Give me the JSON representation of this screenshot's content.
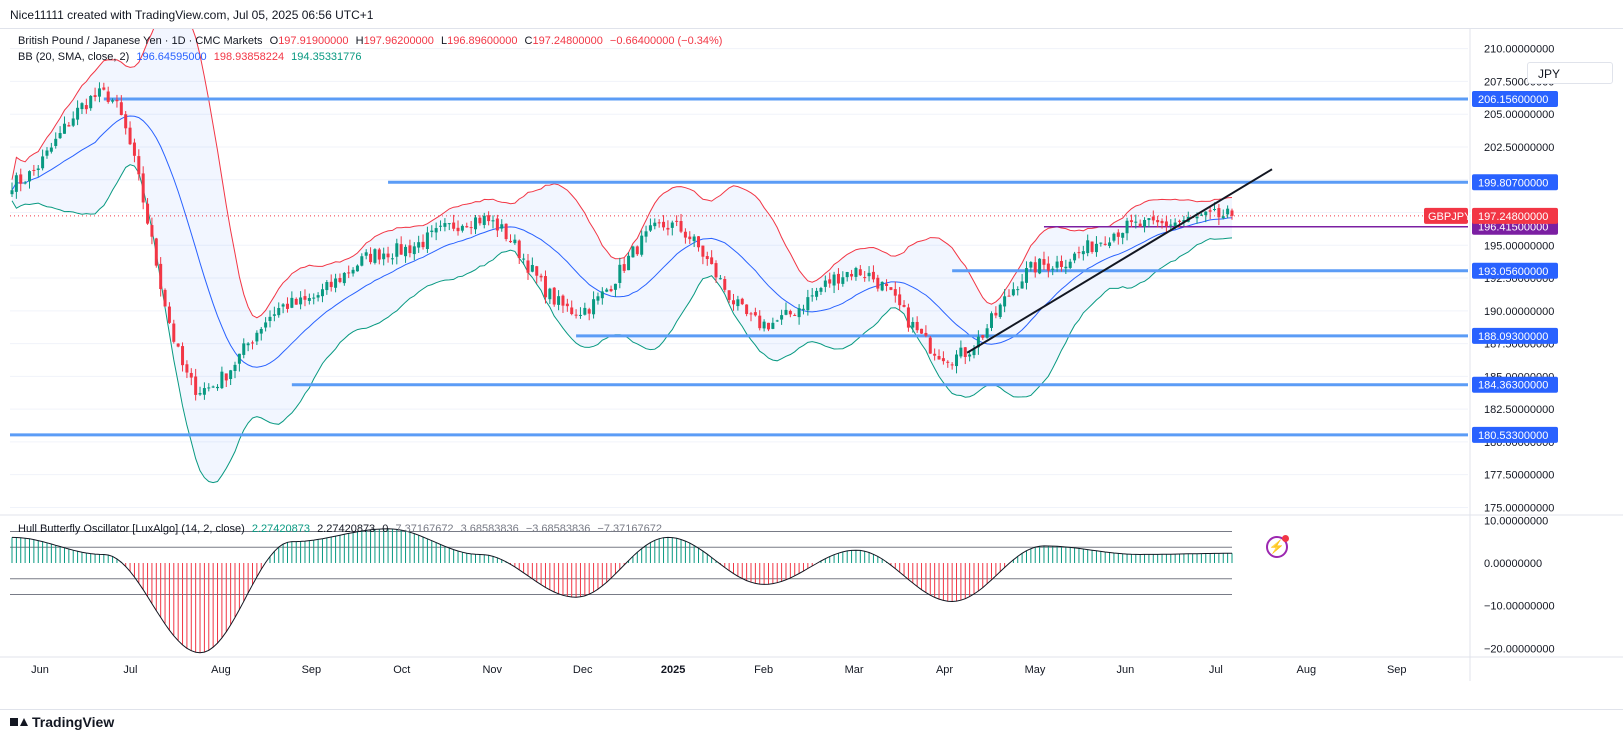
{
  "header": {
    "credit": "Nice11111 created with TradingView.com, Jul 05, 2025 06:56 UTC+1"
  },
  "legend": {
    "symbol": "British Pound / Japanese Yen · 1D · CMC Markets",
    "open_label": "O",
    "open": "197.91900000",
    "high_label": "H",
    "high": "197.96200000",
    "low_label": "L",
    "low": "196.89600000",
    "close_label": "C",
    "close": "197.24800000",
    "change": "−0.66400000 (−0.34%)",
    "bb_label": "BB (20, SMA, close, 2)",
    "bb_basis": "196.64595000",
    "bb_upper": "198.93858224",
    "bb_lower": "194.35331776"
  },
  "oscillator_legend": {
    "name": "Hull Butterfly Oscillator [LuxAlgo] (14, 2, close)",
    "v1": "2.27420873",
    "v2": "2.27420873",
    "zero_mark": "0",
    "l1": "7.37167672",
    "l2": "3.68583836",
    "l3": "−3.68583836",
    "l4": "−7.37167672"
  },
  "currency": "JPY",
  "footer": {
    "logo": "TradingView"
  },
  "colors": {
    "up": "#089981",
    "down": "#f23645",
    "bb_upper": "#f23645",
    "bb_basis": "#2962ff",
    "bb_lower": "#089981",
    "level_line": "#5b9cf6",
    "level_label_bg": "#2962ff",
    "purple": "#7b1fa2",
    "price_badge": "#f23645"
  },
  "chart_data": [
    {
      "type": "candlestick",
      "symbol": "GBPJPY",
      "timeframe": "1D",
      "ylim": [
        174.5,
        211.5
      ],
      "price_ticks": [
        "210.00000000",
        "207.50000000",
        "205.00000000",
        "202.50000000",
        "200.00000000",
        "197.50000000",
        "195.00000000",
        "192.50000000",
        "190.00000000",
        "187.50000000",
        "185.00000000",
        "182.50000000",
        "180.00000000",
        "177.50000000",
        "175.00000000"
      ],
      "time_ticks": [
        "Jun",
        "Jul",
        "Aug",
        "Sep",
        "Oct",
        "Nov",
        "Dec",
        "2025",
        "Feb",
        "Mar",
        "Apr",
        "May",
        "Jun",
        "Jul",
        "Aug",
        "Sep"
      ],
      "horizontal_levels": [
        {
          "value": 206.156,
          "label": "206.15600000",
          "start": "Jul 2024"
        },
        {
          "value": 199.807,
          "label": "199.80700000",
          "start": "Oct 2024"
        },
        {
          "value": 196.415,
          "label": "196.41500000",
          "start": "May 2025"
        },
        {
          "value": 193.056,
          "label": "193.05600000",
          "start": "Apr 2025"
        },
        {
          "value": 188.093,
          "label": "188.09300000",
          "start": "Dec 2024"
        },
        {
          "value": 184.363,
          "label": "184.36300000",
          "start": "Sep 2024"
        },
        {
          "value": 180.533,
          "label": "180.53300000",
          "start": "Jun 2024"
        }
      ],
      "current_price": {
        "value": 197.248,
        "label": "197.24800000",
        "symbol_badge": "GBPJPY"
      },
      "trendline": {
        "from": {
          "date": "Apr 2025",
          "price": 186.8
        },
        "to": {
          "date": "Jul 2025",
          "price": 198.6
        }
      },
      "approx_closes_by_month": [
        {
          "x": "Jun 2024",
          "close": 199.8
        },
        {
          "x": "Jul 2024",
          "close": 206.5
        },
        {
          "x": "Aug 2024",
          "close": 184.0
        },
        {
          "x": "Sep 2024",
          "close": 190.5
        },
        {
          "x": "Oct 2024",
          "close": 194.5
        },
        {
          "x": "Nov 2024",
          "close": 197.0
        },
        {
          "x": "Dec 2024",
          "close": 190.0
        },
        {
          "x": "Jan 2025",
          "close": 196.5
        },
        {
          "x": "Feb 2025",
          "close": 189.0
        },
        {
          "x": "Mar 2025",
          "close": 193.0
        },
        {
          "x": "Apr 2025",
          "close": 186.5
        },
        {
          "x": "May 2025",
          "close": 193.5
        },
        {
          "x": "Jun 2025",
          "close": 196.5
        },
        {
          "x": "Jul 2025",
          "close": 197.248
        }
      ],
      "bollinger_bands": {
        "period": 20,
        "type": "SMA",
        "source": "close",
        "mult": 2
      }
    },
    {
      "type": "histogram",
      "name": "Hull Butterfly Oscillator [LuxAlgo]",
      "ylim": [
        -22,
        11
      ],
      "ticks": [
        "10.00000000",
        "0.00000000",
        "−10.00000000",
        "−20.00000000"
      ],
      "levels": [
        7.37167672,
        3.68583836,
        -3.68583836,
        -7.37167672
      ],
      "approx_values_by_month": [
        {
          "x": "Jun 2024",
          "value": 6
        },
        {
          "x": "Jul 2024",
          "value": 2
        },
        {
          "x": "Aug 2024",
          "value": -21
        },
        {
          "x": "Sep 2024",
          "value": 5
        },
        {
          "x": "Oct 2024",
          "value": 8
        },
        {
          "x": "Nov 2024",
          "value": 2
        },
        {
          "x": "Dec 2024",
          "value": -8
        },
        {
          "x": "Jan 2025",
          "value": 6
        },
        {
          "x": "Feb 2025",
          "value": -5
        },
        {
          "x": "Mar 2025",
          "value": 3
        },
        {
          "x": "Apr 2025",
          "value": -9
        },
        {
          "x": "May 2025",
          "value": 4
        },
        {
          "x": "Jun 2025",
          "value": 2
        },
        {
          "x": "Jul 2025",
          "value": 2.27
        }
      ]
    }
  ]
}
